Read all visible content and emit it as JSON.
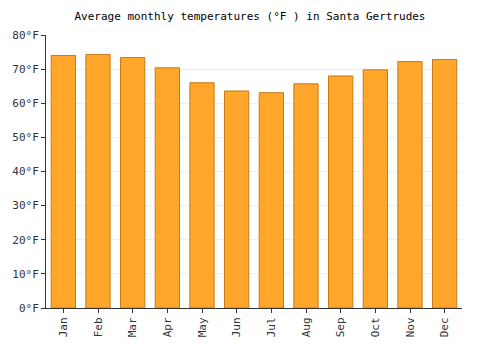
{
  "chart_data": {
    "type": "bar",
    "title": "Average monthly temperatures (°F ) in Santa Gertrudes",
    "categories": [
      "Jan",
      "Feb",
      "Mar",
      "Apr",
      "May",
      "Jun",
      "Jul",
      "Aug",
      "Sep",
      "Oct",
      "Nov",
      "Dec"
    ],
    "values": [
      74,
      74.3,
      73.4,
      70.4,
      66,
      63.6,
      63.1,
      65.7,
      68,
      69.8,
      72.2,
      72.8
    ],
    "color": "#ffa62b",
    "ylim": [
      0,
      80
    ],
    "yticks": [
      {
        "value": 0,
        "label": "0°F"
      },
      {
        "value": 10,
        "label": "10°F"
      },
      {
        "value": 20,
        "label": "20°F"
      },
      {
        "value": 30,
        "label": "30°F"
      },
      {
        "value": 40,
        "label": "40°F"
      },
      {
        "value": 50,
        "label": "50°F"
      },
      {
        "value": 60,
        "label": "60°F"
      },
      {
        "value": 70,
        "label": "70°F"
      },
      {
        "value": 80,
        "label": "80°F"
      }
    ],
    "grid": true
  }
}
